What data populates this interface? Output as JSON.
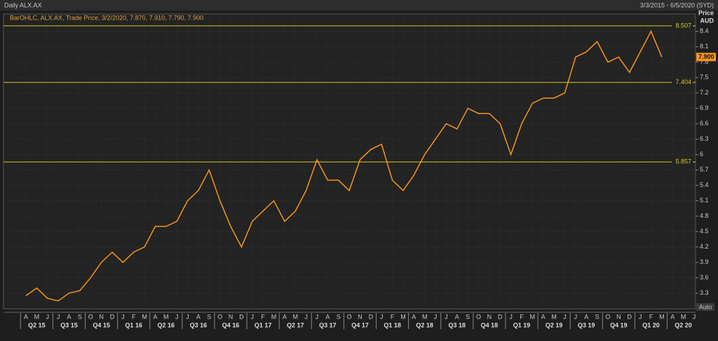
{
  "chart_data": {
    "type": "line",
    "title": "Daily ALX.AX",
    "date_range": "3/3/2015 - 6/5/2020 (SYD)",
    "legend_text": "BarOHLC, ALX.AX, Trade Price, 3/2/2020, 7.870, 7.910, 7.790, 7.900",
    "y_axis_title": "Price",
    "y_axis_unit": "AUD",
    "scale_mode": "Auto",
    "categories": [
      "A",
      "M",
      "J",
      "J",
      "A",
      "S",
      "O",
      "N",
      "D",
      "J",
      "F",
      "M",
      "A",
      "M",
      "J",
      "J",
      "A",
      "S",
      "O",
      "N",
      "D",
      "J",
      "F",
      "M",
      "A",
      "M",
      "J",
      "J",
      "A",
      "S",
      "O",
      "N",
      "D",
      "J",
      "F",
      "M",
      "A",
      "M",
      "J",
      "J",
      "A",
      "S",
      "O",
      "N",
      "D",
      "J",
      "F",
      "M",
      "A",
      "M",
      "J",
      "J",
      "A",
      "S",
      "O",
      "N",
      "D",
      "J",
      "F",
      "M",
      "A",
      "M",
      "J"
    ],
    "quarters": [
      "Q2 15",
      "Q3 15",
      "Q4 15",
      "Q1 16",
      "Q2 16",
      "Q3 16",
      "Q4 16",
      "Q1 17",
      "Q2 17",
      "Q3 17",
      "Q4 17",
      "Q1 18",
      "Q2 18",
      "Q3 18",
      "Q4 18",
      "Q1 19",
      "Q2 19",
      "Q3 19",
      "Q4 19",
      "Q1 20",
      "Q2 20"
    ],
    "series": [
      {
        "name": "ALX.AX",
        "color": "#f7941d",
        "values": [
          3.25,
          3.4,
          3.2,
          3.15,
          3.3,
          3.35,
          3.6,
          3.9,
          4.1,
          3.9,
          4.1,
          4.2,
          4.6,
          4.6,
          4.7,
          5.1,
          5.3,
          5.7,
          5.1,
          4.6,
          4.2,
          4.7,
          4.9,
          5.1,
          4.7,
          4.9,
          5.3,
          5.9,
          5.5,
          5.5,
          5.3,
          5.9,
          6.1,
          6.2,
          5.5,
          5.3,
          5.6,
          6.0,
          6.3,
          6.6,
          6.5,
          6.9,
          6.8,
          6.8,
          6.6,
          6.0,
          6.6,
          7.0,
          7.1,
          7.1,
          7.2,
          7.9,
          8.0,
          8.2,
          7.8,
          7.9,
          7.6,
          8.0,
          8.4,
          7.9,
          null,
          null,
          null
        ]
      }
    ],
    "levels": [
      8.507,
      7.404,
      5.857
    ],
    "level_color": "#d9c81e",
    "last_price": {
      "value": 7.9,
      "label": "7.900"
    },
    "ylim": [
      3.01,
      8.56
    ],
    "yticks": [
      3.3,
      3.6,
      3.9,
      4.2,
      4.5,
      4.8,
      5.1,
      5.4,
      5.7,
      6,
      6.3,
      6.6,
      6.9,
      7.2,
      7.5,
      7.8,
      8.1,
      8.4
    ],
    "grid": true
  }
}
